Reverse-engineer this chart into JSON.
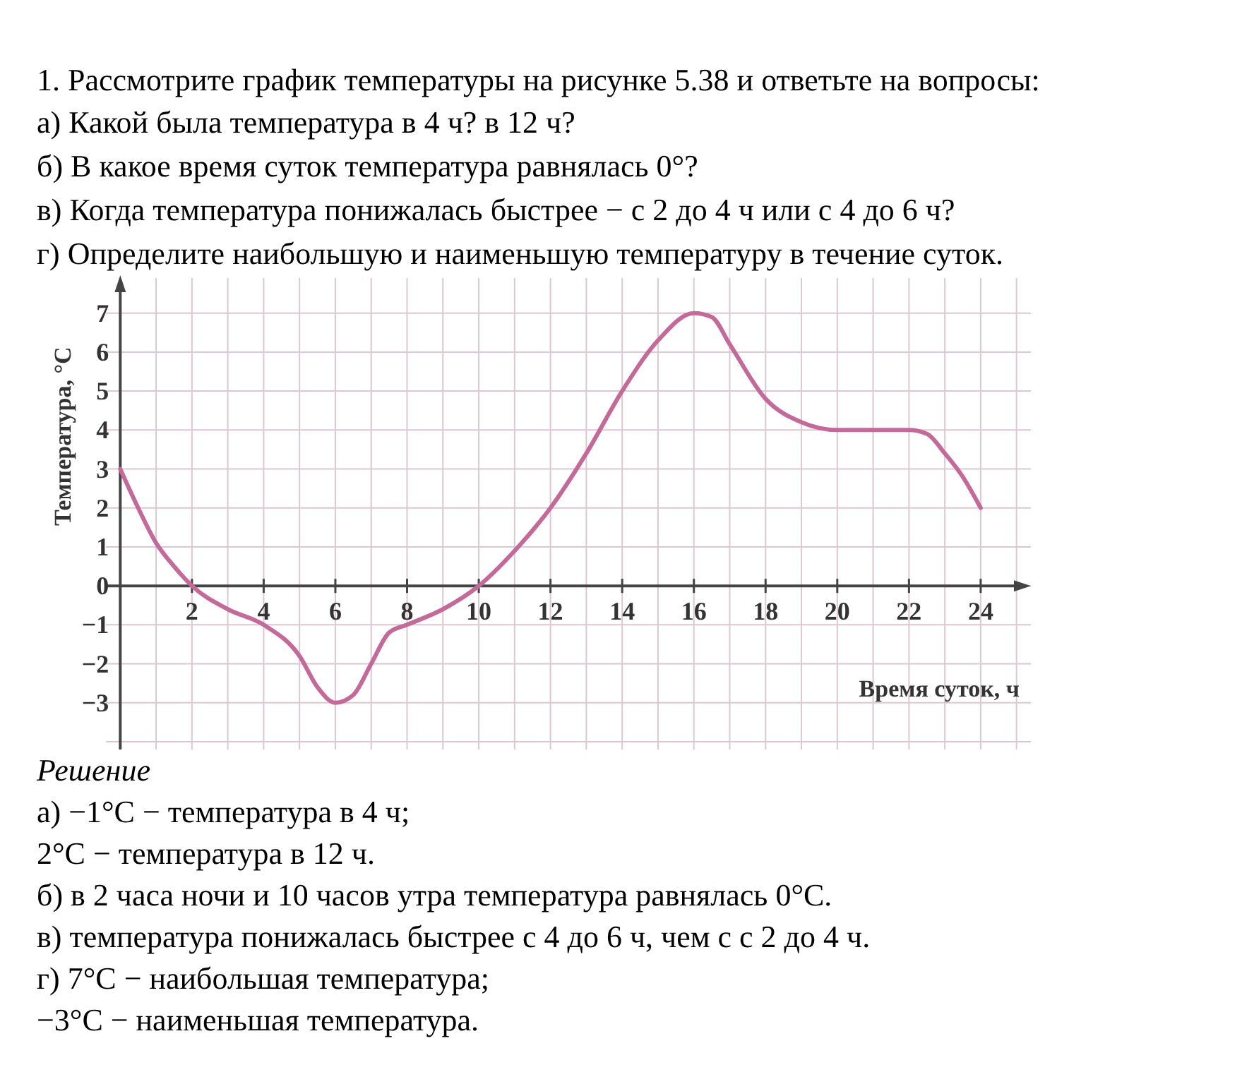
{
  "chart_data": {
    "type": "line",
    "title": "1. Рассмотрите график температуры на рисунке 5.38 и ответьте на вопросы:",
    "subtitle": "а) Какой была температура в 4 ч? в 12 ч?\nб) В какое время суток температура равнялась 0°?\nв) Когда температура понижалась быстрее − с 2 до 4 ч или с 4 до 6 ч?\nг) Определите наибольшую и наименьшую температуру в течение суток.",
    "xlabel": "Время суток, ч",
    "ylabel": "Температура, °C",
    "annotations": [
      "Решение",
      "а) −1°C − температура в 4 ч;",
      "2°C − температура в 12 ч.",
      "б) в 2 часа ночи и 10 часов утра температура равнялась 0°C.",
      "в) температура понижалась быстрее с 4 до 6 ч, чем с с 2 до 4 ч.",
      "г) 7°C − наибольшая температура;",
      "−3°C − наименьшая температура."
    ],
    "x": [
      0,
      0.5,
      1,
      1.5,
      2,
      3,
      4,
      5,
      5.5,
      6,
      6.5,
      7,
      7.5,
      8,
      9,
      10,
      11,
      12,
      13,
      14,
      15,
      16,
      16.5,
      17,
      18,
      19,
      20,
      21,
      22,
      22.5,
      23,
      23.5,
      24
    ],
    "series": [
      {
        "color": "#c46a9a",
        "values": [
          3,
          2,
          1.1,
          0.5,
          0,
          -0.6,
          -1,
          -1.8,
          -2.6,
          -3,
          -2.8,
          -2,
          -1.2,
          -1,
          -0.6,
          0,
          0.9,
          2,
          3.4,
          5,
          6.3,
          7,
          6.9,
          6.2,
          4.8,
          4.2,
          4,
          4,
          4,
          3.9,
          3.4,
          2.8,
          2
        ]
      }
    ],
    "xlim": [
      -0.4,
      25.4
    ],
    "ylim": [
      -4.2,
      7.9
    ],
    "xticks": [
      2,
      4,
      6,
      8,
      10,
      12,
      14,
      16,
      18,
      20,
      22,
      24
    ],
    "yticks": [
      -3,
      -2,
      -1,
      0,
      1,
      2,
      3,
      4,
      5,
      6,
      7
    ],
    "grid": true,
    "marker": "none",
    "line_style": "solid"
  }
}
